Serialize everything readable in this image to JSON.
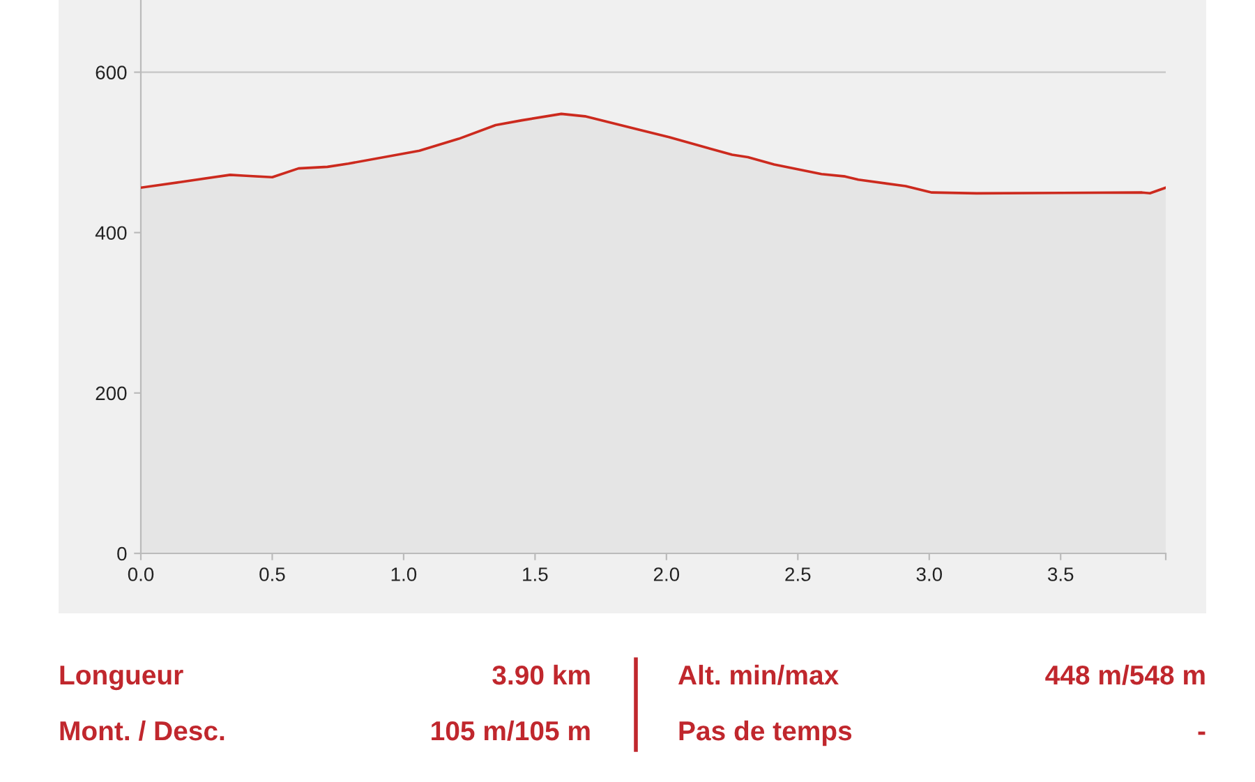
{
  "chart_data": {
    "type": "area",
    "x": [
      0.0,
      0.15,
      0.34,
      0.39,
      0.5,
      0.6,
      0.71,
      0.79,
      1.06,
      1.21,
      1.35,
      1.45,
      1.6,
      1.69,
      1.9,
      2.01,
      2.25,
      2.31,
      2.41,
      2.59,
      2.68,
      2.73,
      2.91,
      3.01,
      3.18,
      3.81,
      3.84,
      3.9
    ],
    "series": [
      {
        "color": "#cc2a1e",
        "values": [
          456,
          463,
          472,
          471,
          469,
          480,
          482,
          486,
          502,
          517,
          534,
          540,
          548,
          545,
          528,
          519,
          497,
          494,
          485,
          473,
          470,
          466,
          458,
          450,
          449,
          450,
          449,
          456
        ]
      }
    ],
    "xlim": [
      0,
      3.9
    ],
    "ylim": [
      0,
      690
    ],
    "xticks": [
      {
        "value": 0,
        "label": "0.0"
      },
      {
        "value": 0.5,
        "label": "0.5"
      },
      {
        "value": 1,
        "label": "1.0"
      },
      {
        "value": 1.5,
        "label": "1.5"
      },
      {
        "value": 2,
        "label": "2.0"
      },
      {
        "value": 2.5,
        "label": "2.5"
      },
      {
        "value": 3,
        "label": "3.0"
      },
      {
        "value": 3.5,
        "label": "3.5"
      },
      {
        "value": 3.9,
        "label": null
      }
    ],
    "yticks": [
      0,
      200,
      400,
      600
    ],
    "grid": "y",
    "annotations": [
      "Longueur",
      "3.90 km",
      "Alt. min/max",
      "448 m/548 m",
      "Mont. / Desc.",
      "105 m/105 m",
      "Pas de temps",
      "-"
    ]
  }
}
